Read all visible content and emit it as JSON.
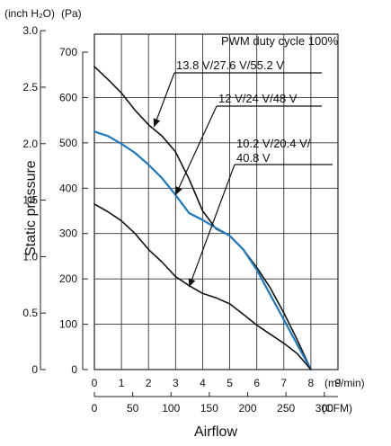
{
  "units": {
    "left_outer": "(inch H₂O)",
    "left_inner": "(Pa)",
    "bottom_inner": "(m³/min)",
    "bottom_outer": "(CFM)"
  },
  "chart_data": {
    "type": "line",
    "title": "PWM duty cycle 100%",
    "xlabel": "Airflow",
    "ylabel": "Static pressure",
    "xlim": [
      0,
      9
    ],
    "ylim": [
      0,
      700
    ],
    "x_ticks_m3min": [
      "0",
      "1",
      "2",
      "3",
      "4",
      "5",
      "6",
      "7",
      "8",
      "9"
    ],
    "x_ticks_cfm": [
      "0",
      "50",
      "100",
      "150",
      "200",
      "250",
      "300"
    ],
    "y_ticks_pa": [
      "0",
      "100",
      "200",
      "300",
      "400",
      "500",
      "600",
      "700"
    ],
    "y_ticks_inh2o": [
      "0",
      "0.5",
      "1.0",
      "1.5",
      "2.0",
      "2.5",
      "3.0"
    ],
    "grid": true,
    "series": [
      {
        "name": "13.8 V/27.6 V/55.2 V",
        "color": "#111111",
        "x": [
          0,
          0.5,
          1,
          1.5,
          2,
          2.5,
          3,
          3.5,
          4,
          4.5,
          5,
          5.5,
          6,
          6.5,
          7,
          7.5,
          8
        ],
        "y": [
          668,
          640,
          610,
          572,
          540,
          515,
          480,
          420,
          350,
          310,
          295,
          265,
          225,
          180,
          125,
          65,
          0
        ]
      },
      {
        "name": "12 V/24 V/48 V",
        "color": "#1c79bd",
        "x": [
          0,
          0.5,
          1,
          1.5,
          2,
          2.5,
          3,
          3.5,
          4,
          4.5,
          5,
          5.5,
          6,
          6.5,
          7,
          7.5,
          8
        ],
        "y": [
          525,
          515,
          498,
          478,
          452,
          422,
          385,
          345,
          330,
          312,
          295,
          265,
          220,
          165,
          110,
          55,
          0
        ]
      },
      {
        "name": "10.2 V/20.4 V/40.8 V",
        "color": "#111111",
        "x": [
          0,
          0.5,
          1,
          1.5,
          2,
          2.5,
          3,
          3.5,
          4,
          4.5,
          5,
          5.5,
          6,
          6.5,
          7,
          7.5,
          8
        ],
        "y": [
          365,
          348,
          328,
          300,
          265,
          237,
          205,
          185,
          168,
          158,
          145,
          122,
          98,
          78,
          58,
          35,
          0
        ]
      }
    ],
    "annotations": [
      {
        "text": "13.8 V/27.6 V/55.2 V",
        "lines": [
          "13.8 V/27.6 V/55.2 V"
        ],
        "points_to": [
          2.2,
          535
        ]
      },
      {
        "text": "12 V/24 V/48 V",
        "lines": [
          "12 V/24 V/48 V"
        ],
        "points_to": [
          3.0,
          385
        ]
      },
      {
        "text": "10.2 V/20.4 V/40.8 V",
        "lines": [
          "10.2 V/20.4 V/",
          "40.8 V"
        ],
        "points_to": [
          3.5,
          182
        ]
      }
    ]
  }
}
